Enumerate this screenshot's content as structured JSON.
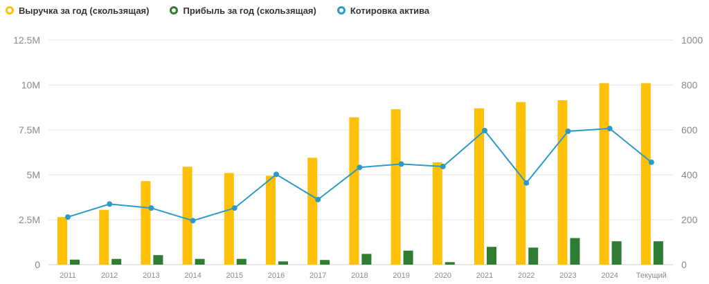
{
  "legend": {
    "revenue_label": "Выручка за год (скользящая)",
    "profit_label": "Прибыль за год (скользящая)",
    "price_label": "Котировка актива"
  },
  "colors": {
    "revenue": "#FFC107",
    "profit": "#2E7D32",
    "price": "#2B9AC9",
    "grid": "#E6E6E6"
  },
  "chart_data": {
    "type": "bar",
    "categories": [
      "2011",
      "2012",
      "2013",
      "2014",
      "2015",
      "2016",
      "2017",
      "2018",
      "2019",
      "2020",
      "2021",
      "2022",
      "2023",
      "2024",
      "Текущий"
    ],
    "series": [
      {
        "name": "Выручка за год (скользящая)",
        "type": "bar",
        "axis": "left",
        "values": [
          2650000,
          3050000,
          4650000,
          5450000,
          5100000,
          4950000,
          5950000,
          8200000,
          8650000,
          5700000,
          8700000,
          9050000,
          9150000,
          10100000,
          10100000
        ]
      },
      {
        "name": "Прибыль за год (скользящая)",
        "type": "bar",
        "axis": "left",
        "values": [
          280000,
          320000,
          530000,
          320000,
          320000,
          180000,
          260000,
          600000,
          780000,
          140000,
          990000,
          950000,
          1480000,
          1300000,
          1300000
        ]
      },
      {
        "name": "Котировка актива",
        "type": "line",
        "axis": "right",
        "values": [
          212,
          270,
          252,
          196,
          252,
          402,
          290,
          433,
          448,
          437,
          597,
          364,
          594,
          606,
          456
        ]
      }
    ],
    "left_axis": {
      "ticks": [
        0,
        2500000,
        5000000,
        7500000,
        10000000,
        12500000
      ],
      "tick_labels": [
        "0",
        "2.5M",
        "5M",
        "7.5M",
        "10M",
        "12.5M"
      ],
      "range": [
        0,
        12500000
      ]
    },
    "right_axis": {
      "ticks": [
        0,
        200,
        400,
        600,
        800,
        1000
      ],
      "tick_labels": [
        "0",
        "200",
        "400",
        "600",
        "800",
        "1000"
      ],
      "range": [
        0,
        1000
      ]
    },
    "grid": true,
    "legend_position": "top-left"
  }
}
